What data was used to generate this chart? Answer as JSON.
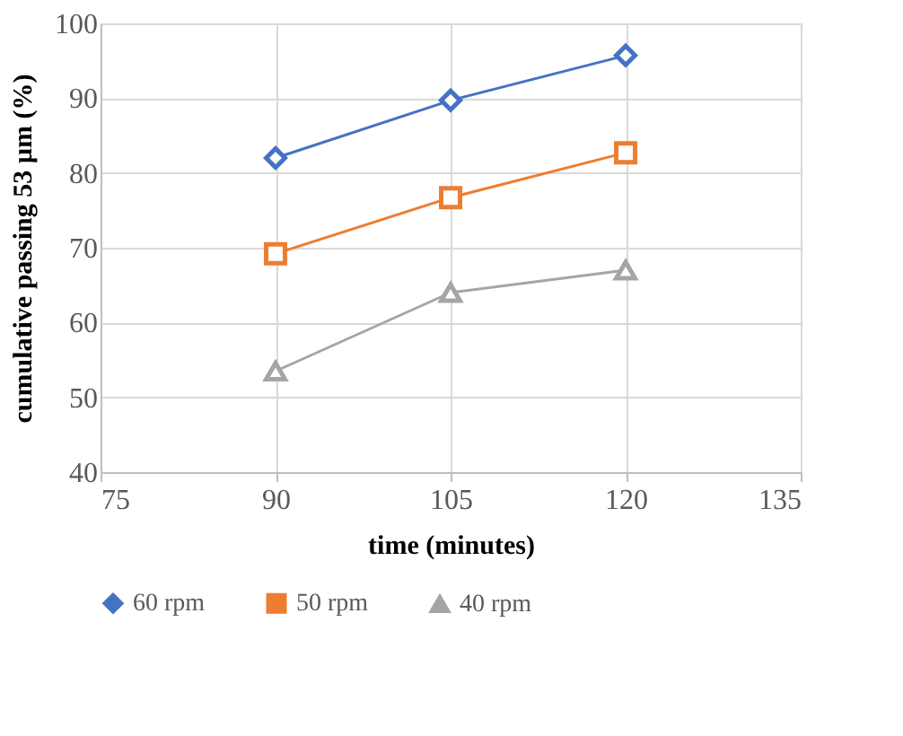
{
  "chart_data": {
    "type": "line",
    "xlabel": "time (minutes)",
    "ylabel": "cumulative passing 53 µm (%)",
    "x": [
      90,
      105,
      120
    ],
    "series": [
      {
        "name": "60 rpm",
        "color": "#4472c4",
        "marker": "diamond",
        "values": [
          82,
          89.7,
          95.7
        ]
      },
      {
        "name": "50 rpm",
        "color": "#ed7d31",
        "marker": "square",
        "values": [
          69.2,
          76.7,
          82.7
        ]
      },
      {
        "name": "40 rpm",
        "color": "#a5a5a5",
        "marker": "triangle",
        "values": [
          53.5,
          64,
          67
        ]
      }
    ],
    "xlim": [
      75,
      135
    ],
    "xticks": [
      75,
      90,
      105,
      120,
      135
    ],
    "ylim": [
      40,
      100
    ],
    "yticks": [
      40,
      50,
      60,
      70,
      80,
      90,
      100
    ],
    "grid": true,
    "legend": "bottom",
    "line_style": "solid"
  }
}
